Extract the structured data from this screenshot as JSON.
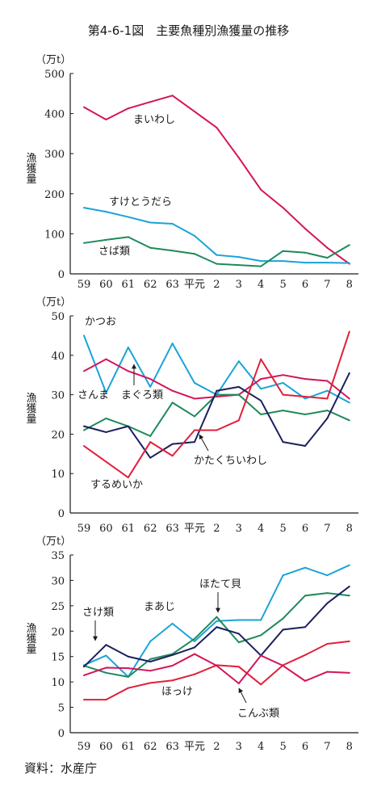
{
  "title": "第4-6-1図　主要魚種別漁獲量の推移",
  "source": "資料：水産庁",
  "colors": {
    "axis": "#1a1a1a",
    "magenta": "#d4145a",
    "cyan": "#1aa3d9",
    "green": "#1e8a5a",
    "navy": "#1c1f5e",
    "red": "#e0203a"
  },
  "chart_data": [
    {
      "type": "line",
      "unit": "（万t）",
      "ylabel": "漁獲量",
      "ylim": [
        0,
        500
      ],
      "yticks": [
        0,
        100,
        200,
        300,
        400,
        500
      ],
      "categories": [
        "59",
        "60",
        "61",
        "62",
        "63",
        "平元",
        "2",
        "3",
        "4",
        "5",
        "6",
        "7",
        "8"
      ],
      "series": [
        {
          "name": "まいわし",
          "color": "magenta",
          "values": [
            416,
            385,
            413,
            429,
            445,
            405,
            365,
            290,
            210,
            165,
            113,
            65,
            25
          ]
        },
        {
          "name": "すけとうだら",
          "color": "cyan",
          "values": [
            165,
            155,
            142,
            128,
            125,
            95,
            47,
            42,
            32,
            32,
            28,
            28,
            27
          ]
        },
        {
          "name": "さば類",
          "color": "green",
          "values": [
            77,
            85,
            92,
            65,
            58,
            50,
            25,
            22,
            19,
            57,
            53,
            40,
            72
          ]
        }
      ]
    },
    {
      "type": "line",
      "unit": "（万t）",
      "ylabel": "漁獲量",
      "ylim": [
        0,
        50
      ],
      "yticks": [
        0,
        10,
        20,
        30,
        40,
        50
      ],
      "categories": [
        "59",
        "60",
        "61",
        "62",
        "63",
        "平元",
        "2",
        "3",
        "4",
        "5",
        "6",
        "7",
        "8"
      ],
      "series": [
        {
          "name": "かつお",
          "color": "cyan",
          "values": [
            45,
            30.5,
            42,
            32,
            43,
            33,
            30,
            38.5,
            31.5,
            33,
            29,
            31,
            28
          ]
        },
        {
          "name": "まぐろ類",
          "color": "magenta",
          "values": [
            36,
            39,
            36,
            34,
            31,
            29,
            29.5,
            30,
            34,
            35,
            34,
            33.5,
            29
          ]
        },
        {
          "name": "さんま",
          "color": "green",
          "values": [
            21,
            24,
            22,
            19.5,
            28,
            24.5,
            30,
            30,
            25,
            26,
            25,
            26,
            23.5
          ]
        },
        {
          "name": "かたくちいわし",
          "color": "navy",
          "values": [
            22,
            20.5,
            22,
            14,
            17.5,
            18,
            31,
            32,
            28.5,
            18,
            17,
            24,
            35.5
          ]
        },
        {
          "name": "するめいか",
          "color": "red",
          "values": [
            17,
            13,
            9,
            18,
            14.5,
            21,
            21,
            23.5,
            39,
            30,
            29.5,
            29,
            46
          ]
        }
      ]
    },
    {
      "type": "line",
      "unit": "（万t）",
      "ylabel": "漁獲量",
      "ylim": [
        0,
        35
      ],
      "yticks": [
        0,
        5,
        10,
        15,
        20,
        25,
        30,
        35
      ],
      "categories": [
        "59",
        "60",
        "61",
        "62",
        "63",
        "平元",
        "2",
        "3",
        "4",
        "5",
        "6",
        "7",
        "8"
      ],
      "series": [
        {
          "name": "ほたて貝",
          "color": "cyan",
          "values": [
            13.3,
            15.2,
            11,
            18,
            21.5,
            18,
            22,
            22.2,
            22.2,
            31,
            32.5,
            31,
            33
          ]
        },
        {
          "name": "まあじ",
          "color": "green",
          "values": [
            13.2,
            11.8,
            11,
            14.5,
            15.5,
            18.5,
            22.8,
            17.8,
            19.2,
            22.5,
            27,
            27.5,
            27
          ]
        },
        {
          "name": "さけ類",
          "color": "navy",
          "values": [
            13,
            17.3,
            15,
            14,
            15.3,
            16.8,
            20.8,
            19.5,
            15.2,
            20.3,
            20.8,
            25.5,
            28.8
          ]
        },
        {
          "name": "ほっけ",
          "color": "red",
          "values": [
            6.5,
            6.5,
            8.8,
            9.8,
            10.3,
            11.5,
            13.3,
            13,
            9.5,
            13.3,
            15.3,
            17.5,
            18
          ]
        },
        {
          "name": "こんぶ類",
          "color": "magenta",
          "values": [
            11.3,
            12.8,
            12.7,
            12.2,
            13.2,
            15.5,
            13.2,
            9.7,
            15.2,
            13.2,
            10.2,
            12,
            11.8
          ]
        }
      ]
    }
  ]
}
